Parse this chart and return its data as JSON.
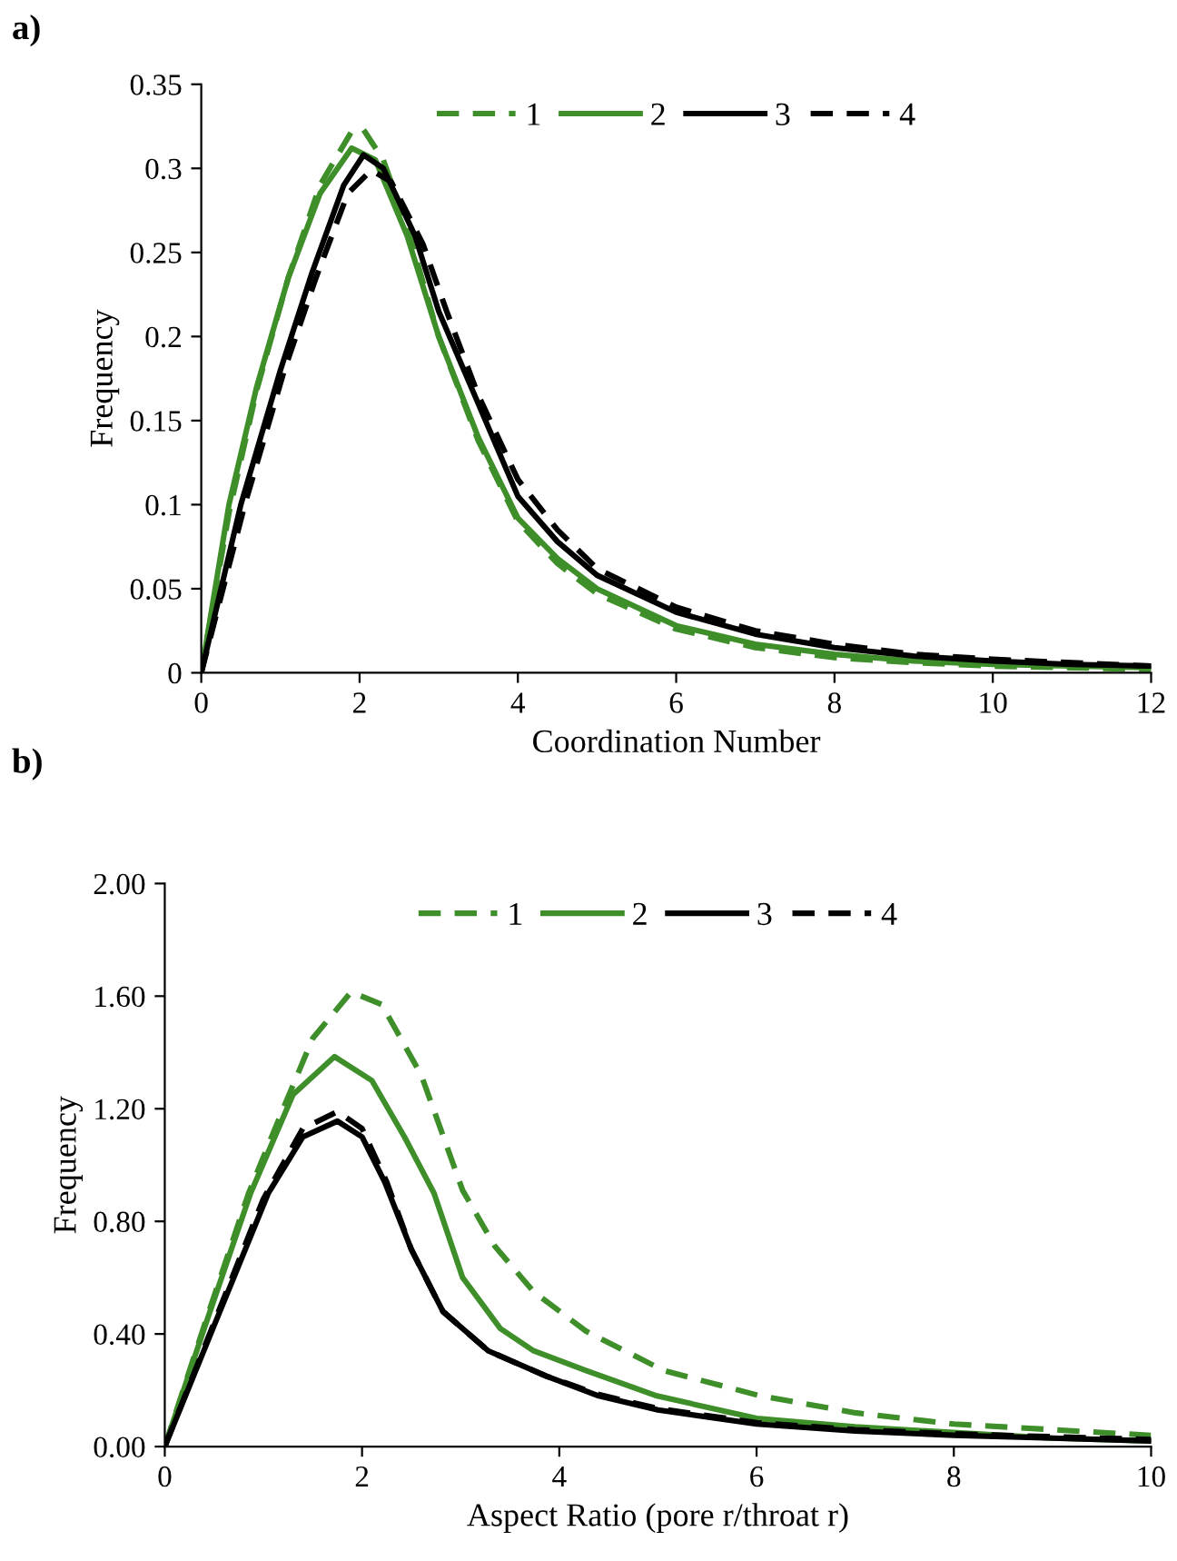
{
  "chart_data": [
    {
      "type": "line",
      "title": "a)",
      "xlabel": "Coordination Number",
      "ylabel": "Frequency",
      "legend": "top",
      "xlim": [
        0,
        12
      ],
      "xticks": [
        0,
        2,
        4,
        6,
        8,
        10,
        12
      ],
      "ylim": [
        0,
        0.35
      ],
      "yticks": [
        0,
        0.05,
        0.1,
        0.15,
        0.2,
        0.25,
        0.3,
        0.35
      ],
      "series": [
        {
          "name": "1",
          "color": "#3e8e2a",
          "line_style": "dashed",
          "x": [
            0,
            0.35,
            0.7,
            1.1,
            1.5,
            1.9,
            2.05,
            2.3,
            2.6,
            3,
            3.5,
            4,
            4.5,
            5,
            6,
            7,
            8,
            9,
            10,
            11,
            12
          ],
          "values": [
            0,
            0.095,
            0.168,
            0.235,
            0.29,
            0.322,
            0.323,
            0.305,
            0.265,
            0.2,
            0.138,
            0.09,
            0.065,
            0.047,
            0.026,
            0.015,
            0.009,
            0.006,
            0.004,
            0.003,
            0.002
          ]
        },
        {
          "name": "2",
          "color": "#3e8e2a",
          "line_style": "solid",
          "x": [
            0,
            0.35,
            0.7,
            1.1,
            1.5,
            1.9,
            2.2,
            2.6,
            3,
            3.5,
            4,
            4.5,
            5,
            6,
            7,
            8,
            9,
            10,
            11,
            12
          ],
          "values": [
            0,
            0.1,
            0.17,
            0.235,
            0.285,
            0.312,
            0.305,
            0.26,
            0.2,
            0.14,
            0.092,
            0.068,
            0.05,
            0.028,
            0.017,
            0.011,
            0.007,
            0.005,
            0.004,
            0.003
          ]
        },
        {
          "name": "3",
          "color": "#000000",
          "line_style": "solid",
          "x": [
            0,
            0.5,
            1,
            1.4,
            1.8,
            2.05,
            2.3,
            2.7,
            3,
            3.5,
            4,
            4.5,
            5,
            6,
            7,
            8,
            9,
            10,
            11,
            12
          ],
          "values": [
            0,
            0.1,
            0.18,
            0.238,
            0.29,
            0.308,
            0.3,
            0.26,
            0.215,
            0.16,
            0.105,
            0.078,
            0.058,
            0.036,
            0.023,
            0.015,
            0.01,
            0.007,
            0.005,
            0.004
          ]
        },
        {
          "name": "4",
          "color": "#000000",
          "line_style": "dashed",
          "x": [
            0,
            0.55,
            1.05,
            1.45,
            1.85,
            2.15,
            2.4,
            2.8,
            3.1,
            3.5,
            4,
            4.5,
            5,
            6,
            7,
            8,
            9,
            10,
            11,
            12
          ],
          "values": [
            0,
            0.1,
            0.18,
            0.235,
            0.285,
            0.299,
            0.292,
            0.255,
            0.215,
            0.165,
            0.115,
            0.085,
            0.062,
            0.039,
            0.025,
            0.017,
            0.011,
            0.008,
            0.006,
            0.004
          ]
        }
      ]
    },
    {
      "type": "line",
      "title": "b)",
      "xlabel": "Aspect Ratio (pore r/throat r)",
      "ylabel": "Frequency",
      "legend": "top",
      "xlim": [
        0,
        10
      ],
      "xticks": [
        0,
        2,
        4,
        6,
        8,
        10
      ],
      "ylim": [
        0,
        2.0
      ],
      "yticks": [
        {
          "value": 0,
          "label": "0.00"
        },
        {
          "value": 0.4,
          "label": "0.40"
        },
        {
          "value": 0.8,
          "label": "0.80"
        },
        {
          "value": 1.2,
          "label": "1.20"
        },
        {
          "value": 1.6,
          "label": "1.60"
        },
        {
          "value": 2.0,
          "label": "2.00"
        }
      ],
      "series": [
        {
          "name": "1",
          "color": "#3e8e2a",
          "line_style": "dashed",
          "x": [
            0,
            0.4,
            0.85,
            1.2,
            1.5,
            1.89,
            2.2,
            2.6,
            3.02,
            3.35,
            3.74,
            4.27,
            5.06,
            6.04,
            7,
            8,
            9,
            10
          ],
          "values": [
            0,
            0.43,
            0.9,
            1.2,
            1.45,
            1.615,
            1.57,
            1.32,
            0.91,
            0.71,
            0.55,
            0.41,
            0.27,
            0.18,
            0.12,
            0.08,
            0.06,
            0.04
          ]
        },
        {
          "name": "2",
          "color": "#3e8e2a",
          "line_style": "solid",
          "x": [
            0,
            0.4,
            0.87,
            1.3,
            1.72,
            2.1,
            2.43,
            2.73,
            3.02,
            3.4,
            3.74,
            4.27,
            4.99,
            6,
            7,
            8,
            9,
            10
          ],
          "values": [
            0,
            0.42,
            0.9,
            1.25,
            1.385,
            1.3,
            1.1,
            0.9,
            0.6,
            0.42,
            0.34,
            0.27,
            0.18,
            0.1,
            0.07,
            0.05,
            0.03,
            0.02
          ]
        },
        {
          "name": "3",
          "color": "#000000",
          "line_style": "solid",
          "x": [
            0,
            0.5,
            1.05,
            1.4,
            1.75,
            2.0,
            2.23,
            2.5,
            2.82,
            3.28,
            3.87,
            4.4,
            5,
            6,
            7,
            8,
            9,
            10
          ],
          "values": [
            0,
            0.43,
            0.9,
            1.1,
            1.156,
            1.1,
            0.94,
            0.7,
            0.48,
            0.34,
            0.25,
            0.18,
            0.13,
            0.08,
            0.055,
            0.04,
            0.03,
            0.02
          ]
        },
        {
          "name": "4",
          "color": "#000000",
          "line_style": "dashed",
          "x": [
            0,
            0.5,
            1.0,
            1.4,
            1.75,
            2.0,
            2.25,
            2.5,
            2.82,
            3.28,
            3.87,
            4.4,
            5,
            6,
            7,
            8,
            9,
            10
          ],
          "values": [
            0,
            0.44,
            0.88,
            1.13,
            1.19,
            1.13,
            0.94,
            0.7,
            0.48,
            0.34,
            0.25,
            0.185,
            0.135,
            0.085,
            0.06,
            0.045,
            0.035,
            0.025
          ]
        }
      ]
    }
  ]
}
